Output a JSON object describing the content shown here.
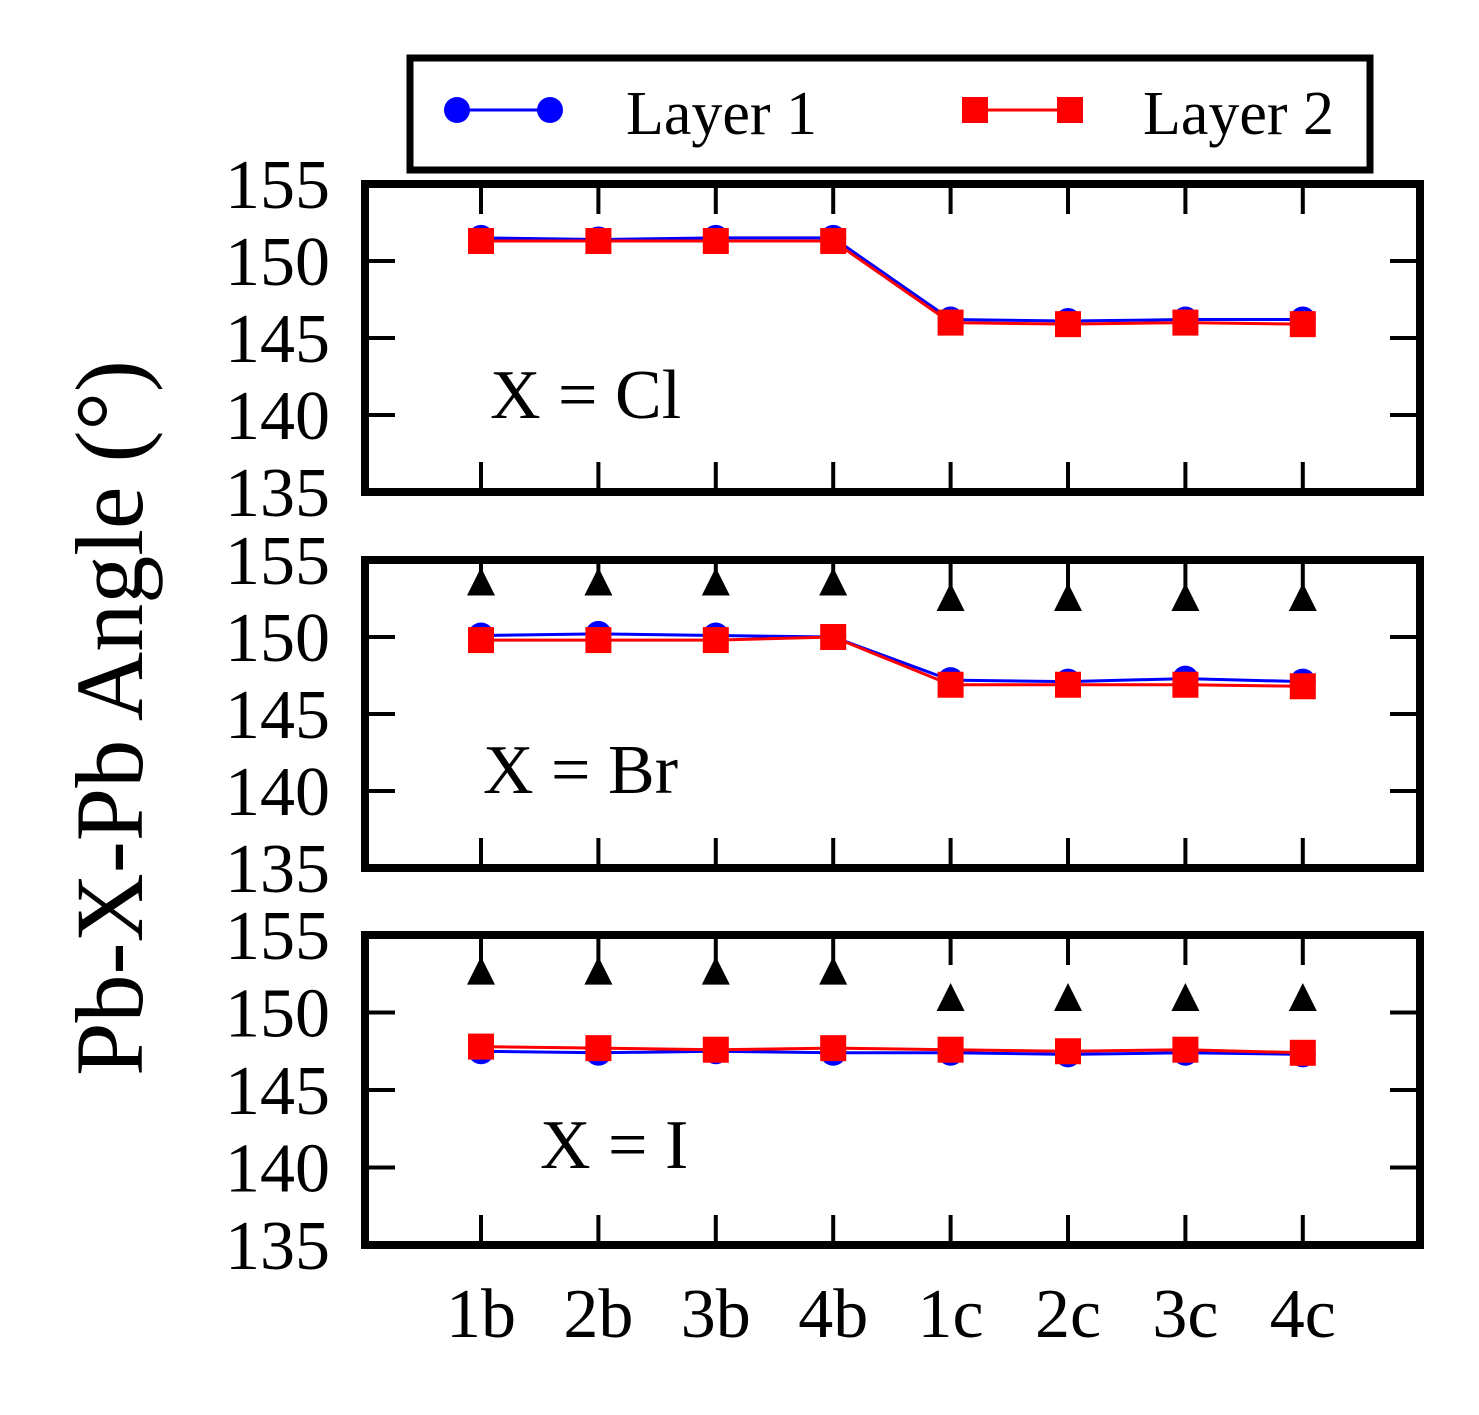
{
  "figure": {
    "ylabel": "Pb-X-Pb Angle (°)",
    "legend": {
      "placement": "top",
      "entries": [
        {
          "label": "Layer 1",
          "color": "#0000ff",
          "marker": "circle"
        },
        {
          "label": "Layer 2",
          "color": "#ff0000",
          "marker": "square"
        }
      ]
    }
  },
  "chart_data": [
    {
      "type": "line",
      "annotation": "X = Cl",
      "categories": [
        "1b",
        "2b",
        "3b",
        "4b",
        "1c",
        "2c",
        "3c",
        "4c"
      ],
      "ylim": [
        135,
        155
      ],
      "yticks": [
        135,
        140,
        145,
        150,
        155
      ],
      "grid": false,
      "series": [
        {
          "name": "Layer 1",
          "color": "#0000ff",
          "marker": "circle",
          "values": [
            151.5,
            151.4,
            151.5,
            151.5,
            146.2,
            146.1,
            146.2,
            146.2
          ]
        },
        {
          "name": "Layer 2",
          "color": "#ff0000",
          "marker": "square",
          "values": [
            151.3,
            151.3,
            151.3,
            151.3,
            146.0,
            145.9,
            146.0,
            145.9
          ]
        }
      ],
      "reference": null
    },
    {
      "type": "line",
      "annotation": "X = Br",
      "categories": [
        "1b",
        "2b",
        "3b",
        "4b",
        "1c",
        "2c",
        "3c",
        "4c"
      ],
      "ylim": [
        135,
        155
      ],
      "yticks": [
        135,
        140,
        145,
        150,
        155
      ],
      "grid": false,
      "series": [
        {
          "name": "Layer 1",
          "color": "#0000ff",
          "marker": "circle",
          "values": [
            150.1,
            150.2,
            150.1,
            150.0,
            147.2,
            147.1,
            147.3,
            147.1
          ]
        },
        {
          "name": "Layer 2",
          "color": "#ff0000",
          "marker": "square",
          "values": [
            149.8,
            149.8,
            149.8,
            150.0,
            146.9,
            146.9,
            146.9,
            146.8
          ]
        }
      ],
      "reference": {
        "color": "#000000",
        "marker": "triangle",
        "values": [
          153.6,
          153.6,
          153.6,
          153.6,
          152.6,
          152.6,
          152.6,
          152.6
        ]
      }
    },
    {
      "type": "line",
      "annotation": "X = I",
      "categories": [
        "1b",
        "2b",
        "3b",
        "4b",
        "1c",
        "2c",
        "3c",
        "4c"
      ],
      "ylim": [
        135,
        155
      ],
      "yticks": [
        135,
        140,
        145,
        150,
        155
      ],
      "grid": false,
      "series": [
        {
          "name": "Layer 1",
          "color": "#0000ff",
          "marker": "circle",
          "values": [
            147.5,
            147.4,
            147.5,
            147.4,
            147.4,
            147.3,
            147.4,
            147.3
          ]
        },
        {
          "name": "Layer 2",
          "color": "#ff0000",
          "marker": "square",
          "values": [
            147.8,
            147.7,
            147.6,
            147.7,
            147.6,
            147.5,
            147.6,
            147.4
          ]
        }
      ],
      "reference": {
        "color": "#000000",
        "marker": "triangle",
        "values": [
          152.7,
          152.7,
          152.7,
          152.7,
          151.0,
          151.0,
          151.0,
          151.0
        ]
      }
    }
  ]
}
